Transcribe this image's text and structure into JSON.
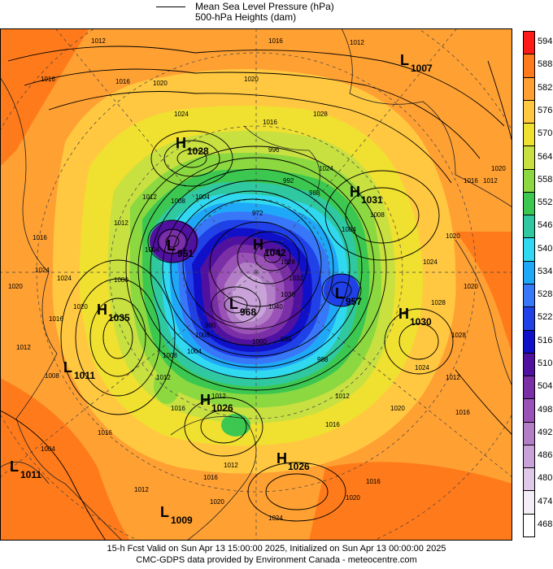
{
  "legend": {
    "line1": "Mean Sea Level Pressure (hPa)",
    "line2": "500-hPa Heights (dam)"
  },
  "footer": {
    "line1": "15-h Fcst Valid on Sun Apr 13 15:00:00 2025, Initialized on Sun Apr 13 00:00:00 2025",
    "line2": "CMC-GDPS data provided by Environment Canada - meteocentre.com"
  },
  "colorscale": {
    "labels": [
      "594",
      "588",
      "582",
      "576",
      "570",
      "564",
      "558",
      "552",
      "546",
      "540",
      "534",
      "528",
      "522",
      "516",
      "510",
      "504",
      "498",
      "492",
      "486",
      "480",
      "474",
      "468"
    ],
    "colors": [
      "#ff1a1a",
      "#ff7a1a",
      "#ffa033",
      "#ffc840",
      "#f0e030",
      "#c8e040",
      "#8cd840",
      "#3cc850",
      "#30c8a0",
      "#30d8f0",
      "#20a8f8",
      "#3878f8",
      "#2040e8",
      "#1010c8",
      "#5010a0",
      "#7a2fa6",
      "#9a52b6",
      "#b27ec6",
      "#c8a2d8",
      "#e0c8e8",
      "#f4ecf6",
      "#ffffff"
    ]
  },
  "pressure_centers": [
    {
      "type": "L",
      "value": "1007"
    },
    {
      "type": "H",
      "value": "1028"
    },
    {
      "type": "H",
      "value": "1031"
    },
    {
      "type": "L",
      "value": "951"
    },
    {
      "type": "H",
      "value": "1042"
    },
    {
      "type": "L",
      "value": "957"
    },
    {
      "type": "H",
      "value": "1035"
    },
    {
      "type": "L",
      "value": "968"
    },
    {
      "type": "H",
      "value": "1030"
    },
    {
      "type": "L",
      "value": "1011"
    },
    {
      "type": "H",
      "value": "1026"
    },
    {
      "type": "H",
      "value": "1026"
    },
    {
      "type": "L",
      "value": "1011"
    },
    {
      "type": "L",
      "value": "1009"
    }
  ],
  "isobar_labels": [
    "1012",
    "1016",
    "1020",
    "1024",
    "1016",
    "1028",
    "1024",
    "1012",
    "1008",
    "1004",
    "996",
    "992",
    "988",
    "1016",
    "1024",
    "1020",
    "1016",
    "1012",
    "1000",
    "1004",
    "1008",
    "1012",
    "1016",
    "1020",
    "1024",
    "1016",
    "1020",
    "1024",
    "1028",
    "1028",
    "1032",
    "1036",
    "1040",
    "972",
    "980",
    "984",
    "988",
    "1012",
    "1016",
    "1020",
    "1024",
    "1028",
    "1012",
    "1016",
    "1012",
    "1020",
    "1000",
    "1004",
    "1008",
    "1012",
    "1004",
    "1008",
    "1012",
    "1016",
    "1020",
    "1016",
    "1020",
    "1024",
    "1012",
    "1008",
    "1004",
    "1016",
    "1020",
    "1012",
    "1016",
    "1020",
    "1016",
    "1012",
    "1016",
    "1020"
  ]
}
